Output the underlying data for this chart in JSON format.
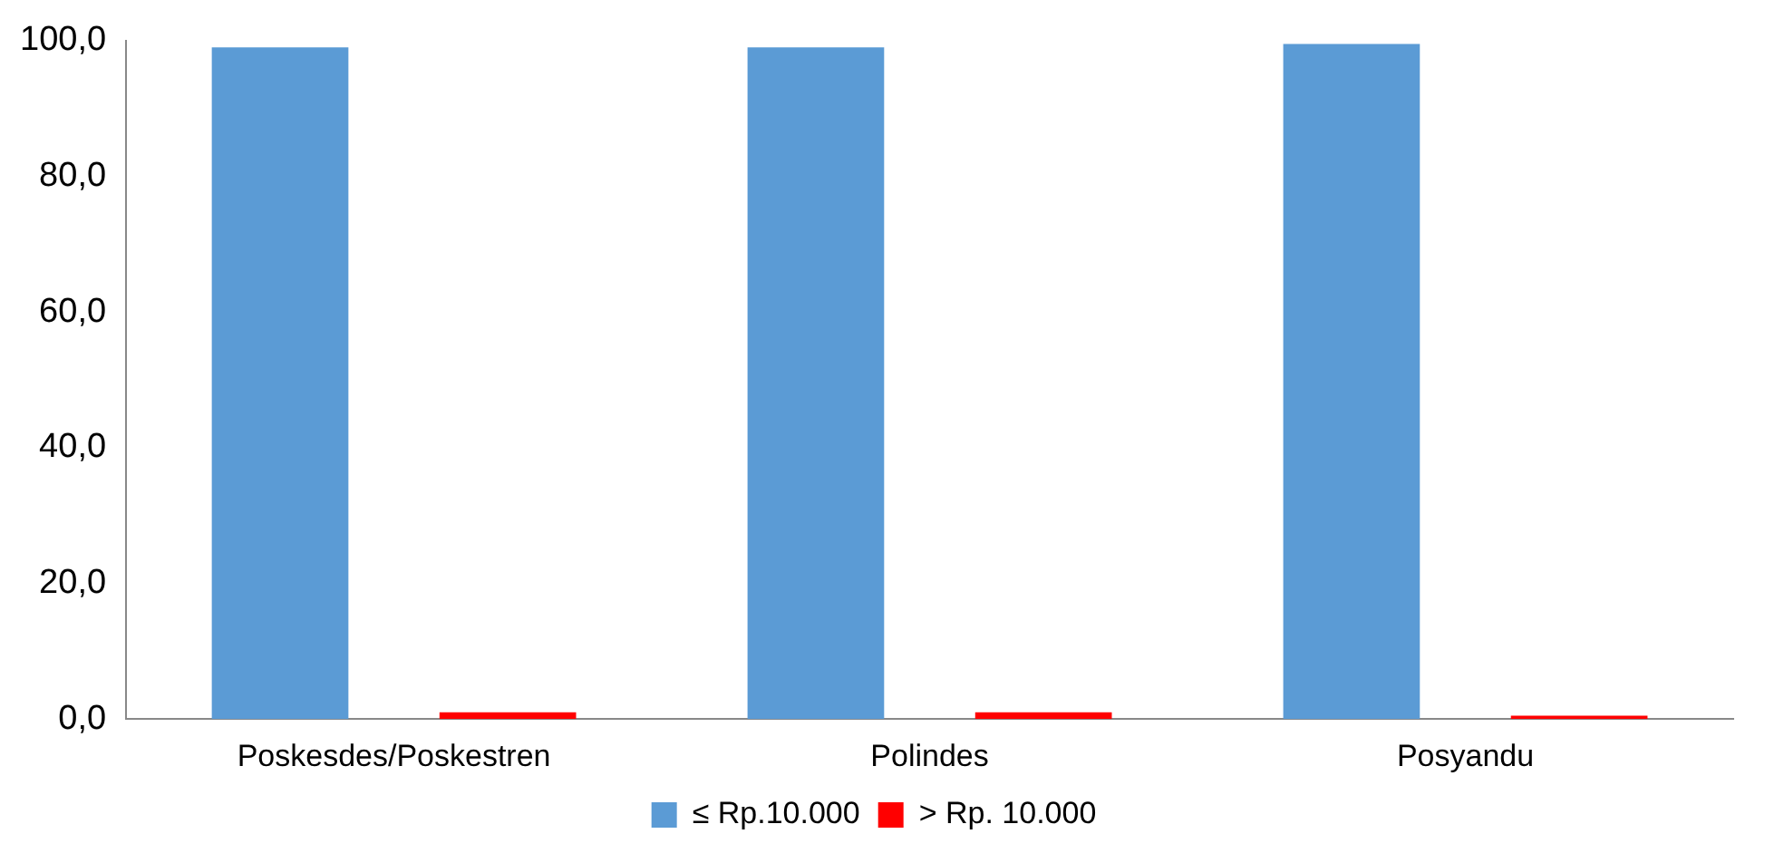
{
  "chart_data": {
    "type": "bar",
    "categories": [
      "Poskesdes/Poskestren",
      "Polindes",
      "Posyandu"
    ],
    "series": [
      {
        "name": "≤ Rp.10.000",
        "color": "#5b9bd5",
        "values": [
          99,
          99,
          99.5
        ]
      },
      {
        "name": "> Rp. 10.000",
        "color": "#ff0000",
        "values": [
          1,
          1,
          0.5
        ]
      }
    ],
    "ylim": [
      0,
      100
    ],
    "yticks": [
      {
        "value": 0,
        "label": "0,0"
      },
      {
        "value": 20,
        "label": "20,0"
      },
      {
        "value": 40,
        "label": "40,0"
      },
      {
        "value": 60,
        "label": "60,0"
      },
      {
        "value": 80,
        "label": "80,0"
      },
      {
        "value": 100,
        "label": "100,0"
      }
    ],
    "grid": false,
    "legend": "bottom"
  }
}
